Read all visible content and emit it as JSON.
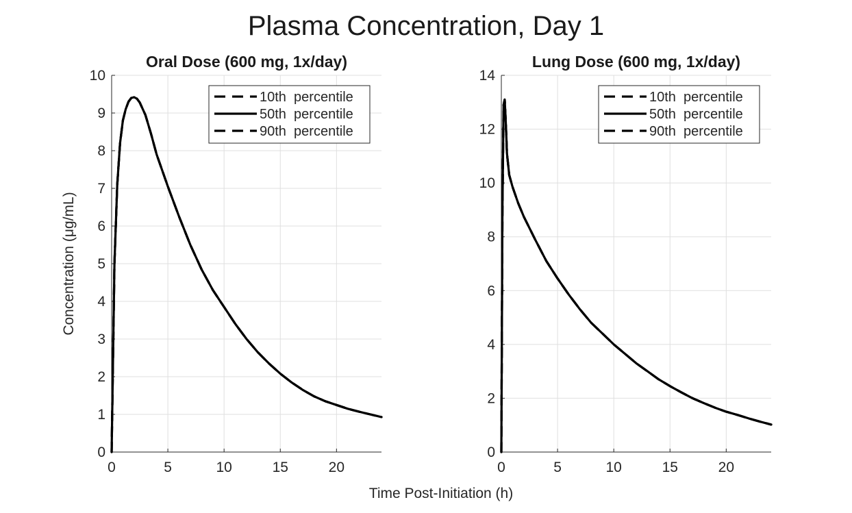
{
  "figure": {
    "title": "Plasma Concentration, Day 1",
    "xlabel": "Time Post-Initiation (h)",
    "ylabel": "Concentration  (μg/mL)"
  },
  "colors": {
    "line": "#000000",
    "grid": "#dfdfdf",
    "axis": "#262626",
    "background": "#ffffff"
  },
  "chart_data": [
    {
      "type": "line",
      "title": "Oral Dose (600 mg, 1x/day)",
      "xlim": [
        0,
        24
      ],
      "ylim": [
        0,
        10
      ],
      "xticks": [
        0,
        5,
        10,
        15,
        20
      ],
      "yticks": [
        0,
        1,
        2,
        3,
        4,
        5,
        6,
        7,
        8,
        9,
        10
      ],
      "grid": true,
      "legend_position": "top-right",
      "x": [
        0,
        0.25,
        0.5,
        0.75,
        1,
        1.25,
        1.5,
        1.75,
        2,
        2.25,
        2.5,
        3,
        3.5,
        4,
        5,
        6,
        7,
        8,
        9,
        10,
        11,
        12,
        13,
        14,
        15,
        16,
        17,
        18,
        19,
        20,
        21,
        22,
        23,
        24
      ],
      "series": [
        {
          "name": "10th  percentile",
          "style": "dashed",
          "y": [
            0,
            5.0,
            7.1,
            8.2,
            8.8,
            9.1,
            9.3,
            9.4,
            9.42,
            9.38,
            9.28,
            8.95,
            8.45,
            7.9,
            7.05,
            6.25,
            5.5,
            4.85,
            4.3,
            3.85,
            3.4,
            3.0,
            2.65,
            2.35,
            2.08,
            1.85,
            1.65,
            1.48,
            1.35,
            1.25,
            1.15,
            1.07,
            1.0,
            0.93
          ]
        },
        {
          "name": "50th  percentile",
          "style": "solid",
          "y": [
            0,
            5.0,
            7.1,
            8.2,
            8.8,
            9.1,
            9.3,
            9.4,
            9.42,
            9.38,
            9.28,
            8.95,
            8.45,
            7.9,
            7.05,
            6.25,
            5.5,
            4.85,
            4.3,
            3.85,
            3.4,
            3.0,
            2.65,
            2.35,
            2.08,
            1.85,
            1.65,
            1.48,
            1.35,
            1.25,
            1.15,
            1.07,
            1.0,
            0.93
          ]
        },
        {
          "name": "90th  percentile",
          "style": "dashed",
          "y": [
            0,
            5.0,
            7.1,
            8.2,
            8.8,
            9.1,
            9.3,
            9.4,
            9.42,
            9.38,
            9.28,
            8.95,
            8.45,
            7.9,
            7.05,
            6.25,
            5.5,
            4.85,
            4.3,
            3.85,
            3.4,
            3.0,
            2.65,
            2.35,
            2.08,
            1.85,
            1.65,
            1.48,
            1.35,
            1.25,
            1.15,
            1.07,
            1.0,
            0.93
          ]
        }
      ]
    },
    {
      "type": "line",
      "title": "Lung Dose (600 mg, 1x/day)",
      "xlim": [
        0,
        24
      ],
      "ylim": [
        0,
        14
      ],
      "xticks": [
        0,
        5,
        10,
        15,
        20
      ],
      "yticks": [
        0,
        2,
        4,
        6,
        8,
        10,
        12,
        14
      ],
      "grid": true,
      "legend_position": "top-right",
      "x": [
        0,
        0.1,
        0.2,
        0.3,
        0.4,
        0.5,
        0.7,
        1,
        1.5,
        2,
        3,
        4,
        5,
        6,
        7,
        8,
        9,
        10,
        11,
        12,
        13,
        14,
        15,
        16,
        17,
        18,
        19,
        20,
        21,
        22,
        23,
        24
      ],
      "series": [
        {
          "name": "10th  percentile",
          "style": "dashed",
          "y": [
            0,
            9.0,
            12.9,
            13.1,
            12.2,
            11.1,
            10.3,
            9.85,
            9.25,
            8.75,
            7.9,
            7.1,
            6.45,
            5.85,
            5.3,
            4.8,
            4.4,
            4.0,
            3.65,
            3.3,
            3.0,
            2.7,
            2.45,
            2.22,
            2.0,
            1.82,
            1.65,
            1.5,
            1.38,
            1.25,
            1.13,
            1.02
          ]
        },
        {
          "name": "50th  percentile",
          "style": "solid",
          "y": [
            0,
            9.0,
            12.9,
            13.1,
            12.2,
            11.1,
            10.3,
            9.85,
            9.25,
            8.75,
            7.9,
            7.1,
            6.45,
            5.85,
            5.3,
            4.8,
            4.4,
            4.0,
            3.65,
            3.3,
            3.0,
            2.7,
            2.45,
            2.22,
            2.0,
            1.82,
            1.65,
            1.5,
            1.38,
            1.25,
            1.13,
            1.02
          ]
        },
        {
          "name": "90th  percentile",
          "style": "dashed",
          "y": [
            0,
            9.0,
            12.9,
            13.1,
            12.2,
            11.1,
            10.3,
            9.85,
            9.25,
            8.75,
            7.9,
            7.1,
            6.45,
            5.85,
            5.3,
            4.8,
            4.4,
            4.0,
            3.65,
            3.3,
            3.0,
            2.7,
            2.45,
            2.22,
            2.0,
            1.82,
            1.65,
            1.5,
            1.38,
            1.25,
            1.13,
            1.02
          ]
        }
      ]
    }
  ]
}
